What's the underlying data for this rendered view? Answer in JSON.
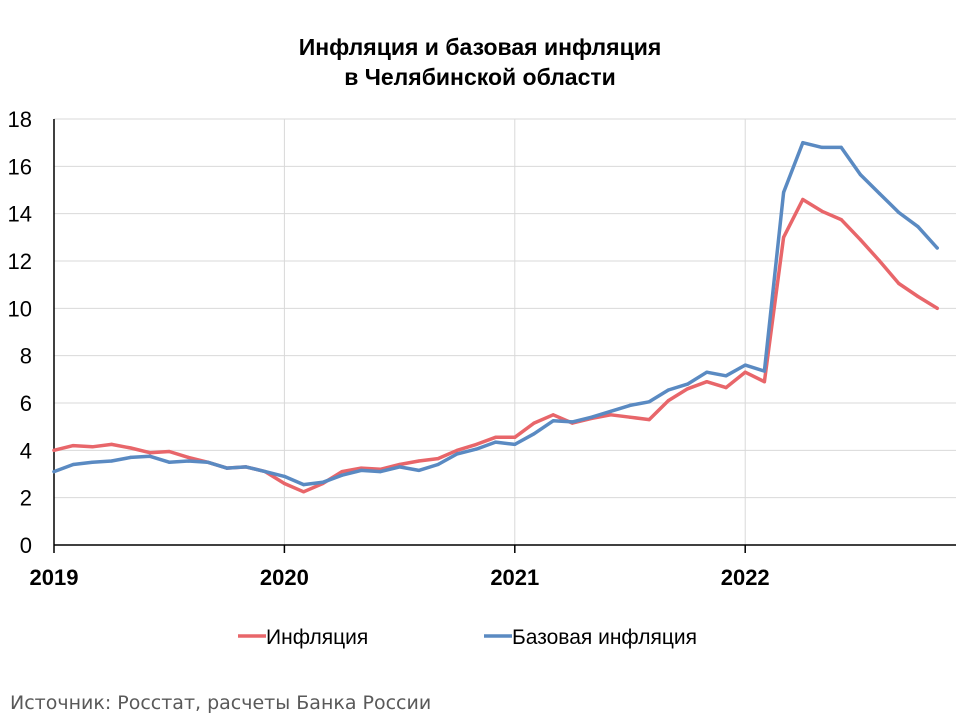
{
  "chart_data": {
    "type": "line",
    "title_lines": [
      "Инфляция и базовая инфляция",
      "в  Челябинской области"
    ],
    "xlabel": "",
    "ylabel": "",
    "ylim": [
      0,
      18
    ],
    "yticks": [
      0,
      2,
      4,
      6,
      8,
      10,
      12,
      14,
      16,
      18
    ],
    "xlim": [
      "2019-01",
      "2022-12"
    ],
    "xticks": [
      {
        "label": "2019",
        "month": "2019-01"
      },
      {
        "label": "2020",
        "month": "2020-01"
      },
      {
        "label": "2021",
        "month": "2021-01"
      },
      {
        "label": "2022",
        "month": "2022-01"
      }
    ],
    "grid": true,
    "legend_position": "bottom",
    "x": [
      "2019-01",
      "2019-02",
      "2019-03",
      "2019-04",
      "2019-05",
      "2019-06",
      "2019-07",
      "2019-08",
      "2019-09",
      "2019-10",
      "2019-11",
      "2019-12",
      "2020-01",
      "2020-02",
      "2020-03",
      "2020-04",
      "2020-05",
      "2020-06",
      "2020-07",
      "2020-08",
      "2020-09",
      "2020-10",
      "2020-11",
      "2020-12",
      "2021-01",
      "2021-02",
      "2021-03",
      "2021-04",
      "2021-05",
      "2021-06",
      "2021-07",
      "2021-08",
      "2021-09",
      "2021-10",
      "2021-11",
      "2021-12",
      "2022-01",
      "2022-02",
      "2022-03",
      "2022-04",
      "2022-05",
      "2022-06",
      "2022-07",
      "2022-08",
      "2022-09",
      "2022-10",
      "2022-11"
    ],
    "series": [
      {
        "name": "Инфляция",
        "color": "#E8666A",
        "values": [
          4.0,
          4.2,
          4.15,
          4.25,
          4.1,
          3.9,
          3.95,
          3.7,
          3.5,
          3.25,
          3.3,
          3.1,
          2.6,
          2.25,
          2.6,
          3.1,
          3.25,
          3.2,
          3.4,
          3.55,
          3.65,
          4.0,
          4.25,
          4.55,
          4.55,
          5.15,
          5.5,
          5.15,
          5.35,
          5.5,
          5.4,
          5.3,
          6.1,
          6.6,
          6.9,
          6.65,
          7.3,
          6.9,
          13.0,
          14.6,
          14.1,
          13.75,
          12.9,
          12.0,
          11.05,
          10.5,
          10.0
        ]
      },
      {
        "name": "Базовая инфляция",
        "color": "#5A8AC2",
        "values": [
          3.1,
          3.4,
          3.5,
          3.55,
          3.7,
          3.75,
          3.5,
          3.55,
          3.5,
          3.25,
          3.3,
          3.1,
          2.9,
          2.55,
          2.65,
          2.95,
          3.15,
          3.1,
          3.3,
          3.15,
          3.4,
          3.85,
          4.05,
          4.35,
          4.25,
          4.7,
          5.25,
          5.2,
          5.4,
          5.65,
          5.9,
          6.05,
          6.55,
          6.8,
          7.3,
          7.15,
          7.6,
          7.35,
          14.9,
          17.0,
          16.8,
          16.8,
          15.65,
          14.85,
          14.05,
          13.45,
          12.55
        ]
      }
    ]
  },
  "source_text": "Источник: Росстат, расчеты Банка России"
}
